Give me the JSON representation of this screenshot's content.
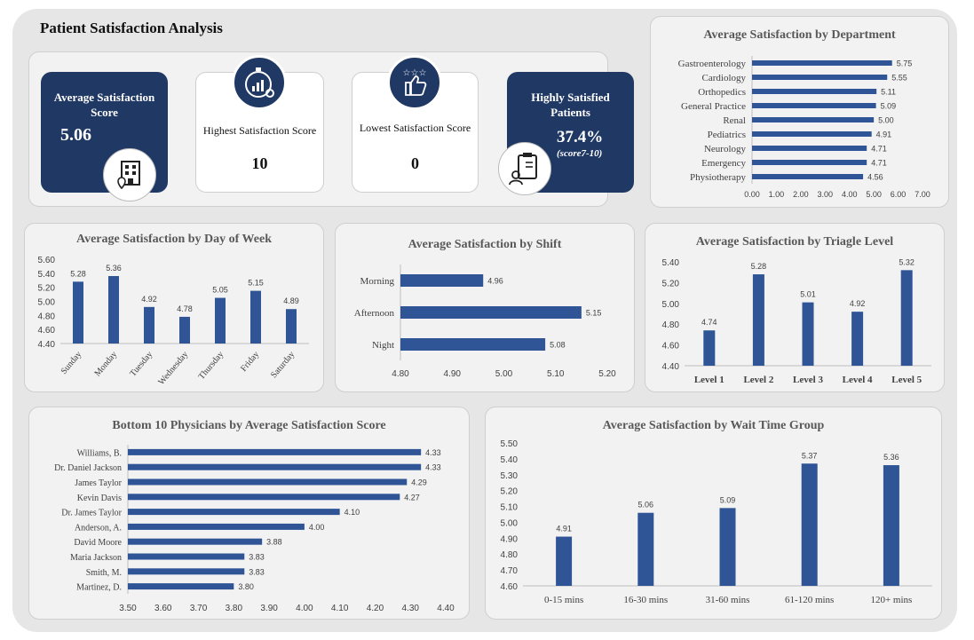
{
  "page_title": "Patient Satisfaction Analysis",
  "colors": {
    "accent": "#2F5597",
    "dark": "#203864",
    "card": "#F2F2F2"
  },
  "kpis": {
    "avg": {
      "label": "Average Satisfaction Score",
      "value": "5.06",
      "icon": "building-location-icon"
    },
    "highest": {
      "label": "Highest Satisfaction Score",
      "value": "10",
      "icon": "stopwatch-chart-icon"
    },
    "lowest": {
      "label": "Lowest Satisfaction Score",
      "value": "0",
      "icon": "thumbs-up-stars-icon"
    },
    "highly": {
      "label": "Highly Satisfied Patients",
      "value": "37.4%",
      "sub": "(score7-10)",
      "icon": "clipboard-patient-icon"
    }
  },
  "chart_data": [
    {
      "id": "dept",
      "type": "bar",
      "orientation": "horizontal",
      "title": "Average Satisfaction by Department",
      "categories": [
        "Gastroenterology",
        "Cardiology",
        "Orthopedics",
        "General Practice",
        "Renal",
        "Pediatrics",
        "Neurology",
        "Emergency",
        "Physiotherapy"
      ],
      "values": [
        5.75,
        5.55,
        5.11,
        5.09,
        5.0,
        4.91,
        4.71,
        4.71,
        4.56
      ],
      "labels": [
        "5.75",
        "5.55",
        "5.11",
        "5.09",
        "5.00",
        "4.91",
        "4.71",
        "4.71",
        "4.56"
      ],
      "xlim": [
        0,
        7
      ],
      "ticks": [
        "0.00",
        "1.00",
        "2.00",
        "3.00",
        "4.00",
        "5.00",
        "6.00",
        "7.00"
      ]
    },
    {
      "id": "dow",
      "type": "bar",
      "orientation": "vertical",
      "title": "Average Satisfaction by Day of Week",
      "categories": [
        "Sunday",
        "Monday",
        "Tuesday",
        "Wednesday",
        "Thursday",
        "Friday",
        "Saturday"
      ],
      "values": [
        5.28,
        5.36,
        4.92,
        4.78,
        5.05,
        5.15,
        4.89
      ],
      "labels": [
        "5.28",
        "5.36",
        "4.92",
        "4.78",
        "5.05",
        "5.15",
        "4.89"
      ],
      "ylim": [
        4.4,
        5.6
      ],
      "ticks": [
        "4.40",
        "4.60",
        "4.80",
        "5.00",
        "5.20",
        "5.40",
        "5.60"
      ]
    },
    {
      "id": "shift",
      "type": "bar",
      "orientation": "horizontal",
      "title": "Average Satisfaction by Shift",
      "categories": [
        "Morning",
        "Afternoon",
        "Night"
      ],
      "values": [
        4.96,
        5.15,
        5.08
      ],
      "labels": [
        "4.96",
        "5.15",
        "5.08"
      ],
      "xlim": [
        4.8,
        5.2
      ],
      "ticks": [
        "4.80",
        "4.90",
        "5.00",
        "5.10",
        "5.20"
      ]
    },
    {
      "id": "triage",
      "type": "bar",
      "orientation": "vertical",
      "title": "Average Satisfaction by Triagle Level",
      "categories": [
        "Level 1",
        "Level 2",
        "Level 3",
        "Level 4",
        "Level 5"
      ],
      "values": [
        4.74,
        5.28,
        5.01,
        4.92,
        5.32
      ],
      "labels": [
        "4.74",
        "5.28",
        "5.01",
        "4.92",
        "5.32"
      ],
      "ylim": [
        4.4,
        5.4
      ],
      "ticks": [
        "4.40",
        "4.60",
        "4.80",
        "5.00",
        "5.20",
        "5.40"
      ]
    },
    {
      "id": "physicians",
      "type": "bar",
      "orientation": "horizontal",
      "title": "Bottom 10 Physicians by Average Satisfaction Score",
      "categories": [
        "Williams, B.",
        "Dr. Daniel Jackson",
        "James Taylor",
        "Kevin Davis",
        "Dr. James Taylor",
        "Anderson, A.",
        "David Moore",
        "Maria Jackson",
        "Smith, M.",
        "Martinez, D."
      ],
      "values": [
        4.33,
        4.33,
        4.29,
        4.27,
        4.1,
        4.0,
        3.88,
        3.83,
        3.83,
        3.8
      ],
      "labels": [
        "4.33",
        "4.33",
        "4.29",
        "4.27",
        "4.10",
        "4.00",
        "3.88",
        "3.83",
        "3.83",
        "3.80"
      ],
      "xlim": [
        3.5,
        4.4
      ],
      "ticks": [
        "3.50",
        "3.60",
        "3.70",
        "3.80",
        "3.90",
        "4.00",
        "4.10",
        "4.20",
        "4.30",
        "4.40"
      ]
    },
    {
      "id": "wait",
      "type": "bar",
      "orientation": "vertical",
      "title": "Average Satisfaction by Wait Time Group",
      "categories": [
        "0-15 mins",
        "16-30 mins",
        "31-60 mins",
        "61-120 mins",
        "120+ mins"
      ],
      "values": [
        4.91,
        5.06,
        5.09,
        5.37,
        5.36
      ],
      "labels": [
        "4.91",
        "5.06",
        "5.09",
        "5.37",
        "5.36"
      ],
      "ylim": [
        4.6,
        5.5
      ],
      "ticks": [
        "4.60",
        "4.70",
        "4.80",
        "4.90",
        "5.00",
        "5.10",
        "5.20",
        "5.30",
        "5.40",
        "5.50"
      ]
    }
  ]
}
